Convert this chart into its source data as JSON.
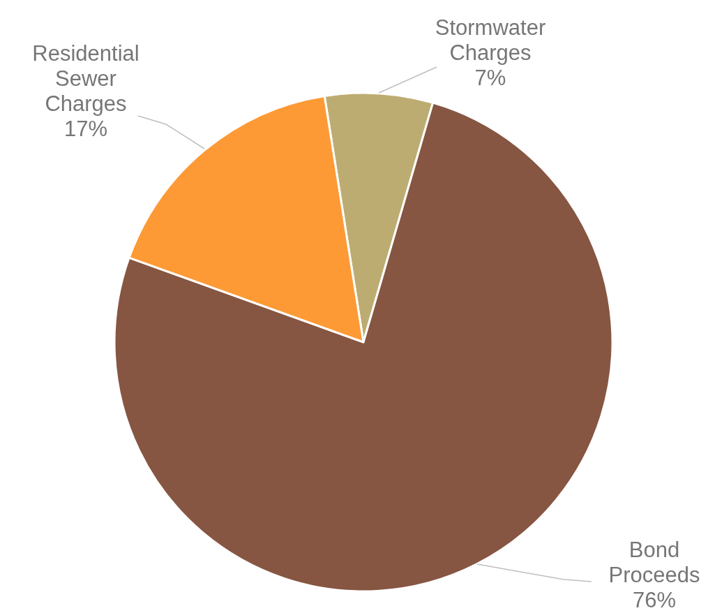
{
  "chart_data": {
    "type": "pie",
    "categories": [
      "Stormwater Charges",
      "Bond Proceeds",
      "Residential Sewer Charges"
    ],
    "values": [
      7,
      76,
      17
    ],
    "colors": [
      "#bdac72",
      "#865642",
      "#fd9a35"
    ],
    "value_labels": [
      "7%",
      "76%",
      "17%"
    ],
    "legend": false
  }
}
